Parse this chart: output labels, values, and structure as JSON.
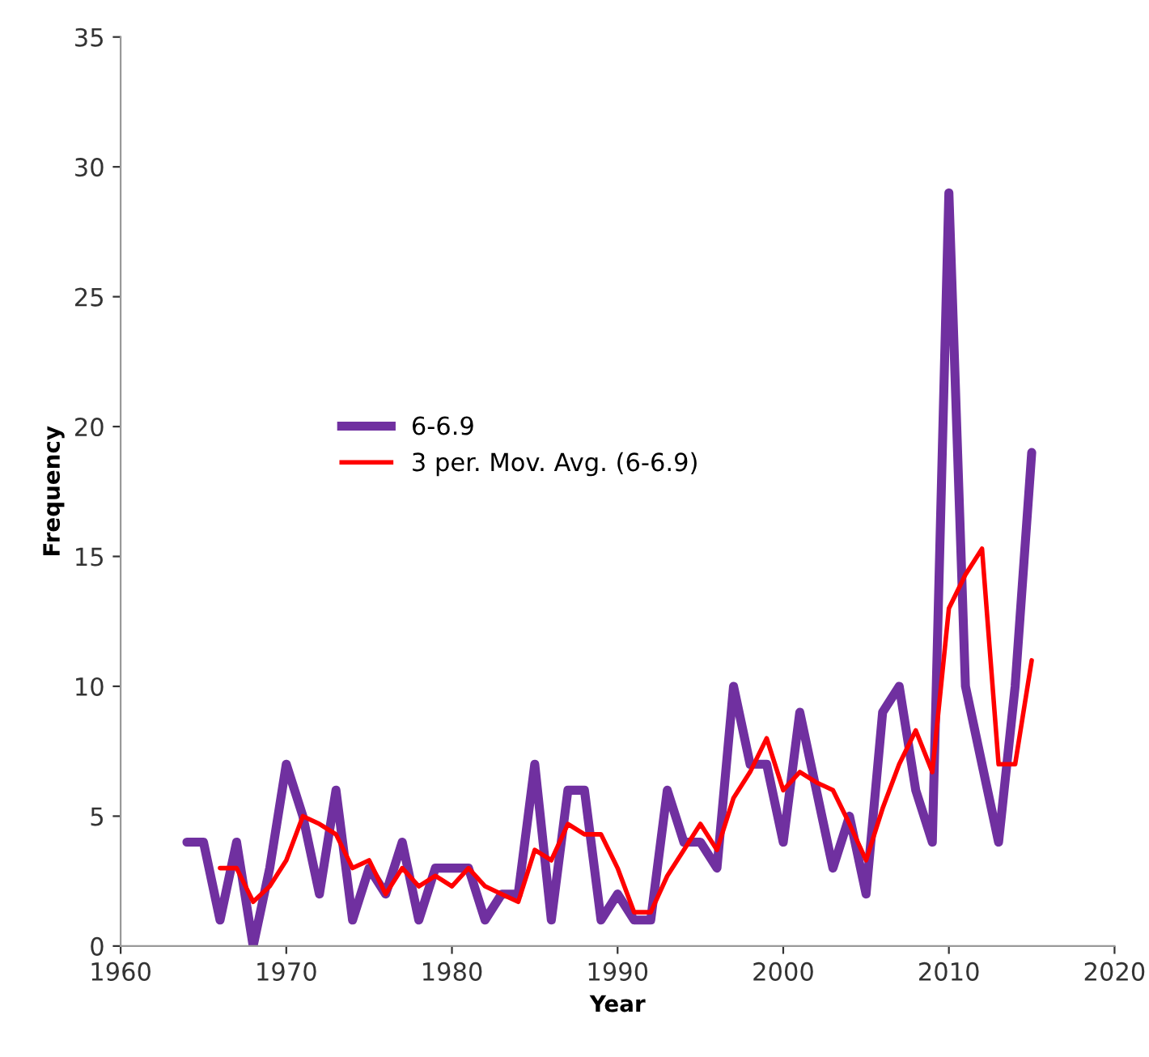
{
  "chart_data": {
    "type": "line",
    "xlabel": "Year",
    "ylabel": "Frequency",
    "xlim": [
      1960,
      2020
    ],
    "xticks": [
      1960,
      1970,
      1980,
      1990,
      2000,
      2010,
      2020
    ],
    "ylim": [
      0,
      35
    ],
    "yticks": [
      0,
      5,
      10,
      15,
      20,
      25,
      30,
      35
    ],
    "grid": false,
    "legend": "center left",
    "marker": "none",
    "line_style": "solid",
    "series": [
      {
        "name": "6-6.9",
        "color": "#7030a0",
        "x": [
          1964,
          1965,
          1966,
          1967,
          1968,
          1969,
          1970,
          1971,
          1972,
          1973,
          1974,
          1975,
          1976,
          1977,
          1978,
          1979,
          1980,
          1981,
          1982,
          1983,
          1984,
          1985,
          1986,
          1987,
          1988,
          1989,
          1990,
          1991,
          1992,
          1993,
          1994,
          1995,
          1996,
          1997,
          1998,
          1999,
          2000,
          2001,
          2002,
          2003,
          2004,
          2005,
          2006,
          2007,
          2008,
          2009,
          2010,
          2011,
          2012,
          2013,
          2014,
          2015
        ],
        "values": [
          4,
          4,
          1,
          4,
          0,
          3,
          7,
          5,
          2,
          6,
          1,
          3,
          2,
          4,
          1,
          3,
          3,
          3,
          1,
          2,
          2,
          7,
          1,
          6,
          6,
          1,
          2,
          1,
          1,
          6,
          4,
          4,
          3,
          10,
          7,
          7,
          4,
          9,
          6,
          3,
          5,
          2,
          9,
          10,
          6,
          4,
          29,
          10,
          7,
          4,
          10,
          19
        ]
      },
      {
        "name": "3 per. Mov. Avg. (6-6.9)",
        "color": "#ff0000",
        "x": [
          1966,
          1967,
          1968,
          1969,
          1970,
          1971,
          1972,
          1973,
          1974,
          1975,
          1976,
          1977,
          1978,
          1979,
          1980,
          1981,
          1982,
          1983,
          1984,
          1985,
          1986,
          1987,
          1988,
          1989,
          1990,
          1991,
          1992,
          1993,
          1994,
          1995,
          1996,
          1997,
          1998,
          1999,
          2000,
          2001,
          2002,
          2003,
          2004,
          2005,
          2006,
          2007,
          2008,
          2009,
          2010,
          2011,
          2012,
          2013,
          2014,
          2015
        ],
        "values": [
          3.0,
          3.0,
          1.7,
          2.3,
          3.3,
          5.0,
          4.7,
          4.3,
          3.0,
          3.3,
          2.0,
          3.0,
          2.3,
          2.7,
          2.3,
          3.0,
          2.3,
          2.0,
          1.7,
          3.7,
          3.3,
          4.7,
          4.3,
          4.3,
          3.0,
          1.3,
          1.3,
          2.7,
          3.7,
          4.7,
          3.7,
          5.7,
          6.7,
          8.0,
          6.0,
          6.7,
          6.3,
          6.0,
          4.7,
          3.3,
          5.3,
          7.0,
          8.3,
          6.7,
          13.0,
          14.3,
          15.3,
          7.0,
          7.0,
          11.0
        ]
      }
    ]
  }
}
